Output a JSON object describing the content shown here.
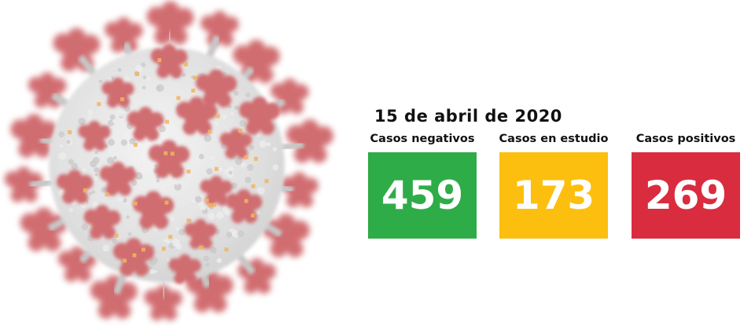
{
  "date": "15 de abril de 2020",
  "stats": [
    {
      "label": "Casos negativos",
      "value": "459",
      "color": "#2eac48"
    },
    {
      "label": "Casos en estudio",
      "value": "173",
      "color": "#fdbf0f"
    },
    {
      "label": "Casos positivos",
      "value": "269",
      "color": "#da2c3f"
    }
  ],
  "illustration": {
    "icon": "coronavirus-illustration-icon",
    "body_color": "#d9d9d9",
    "spike_color": "#c4444a",
    "accent_color": "#f0a030"
  }
}
